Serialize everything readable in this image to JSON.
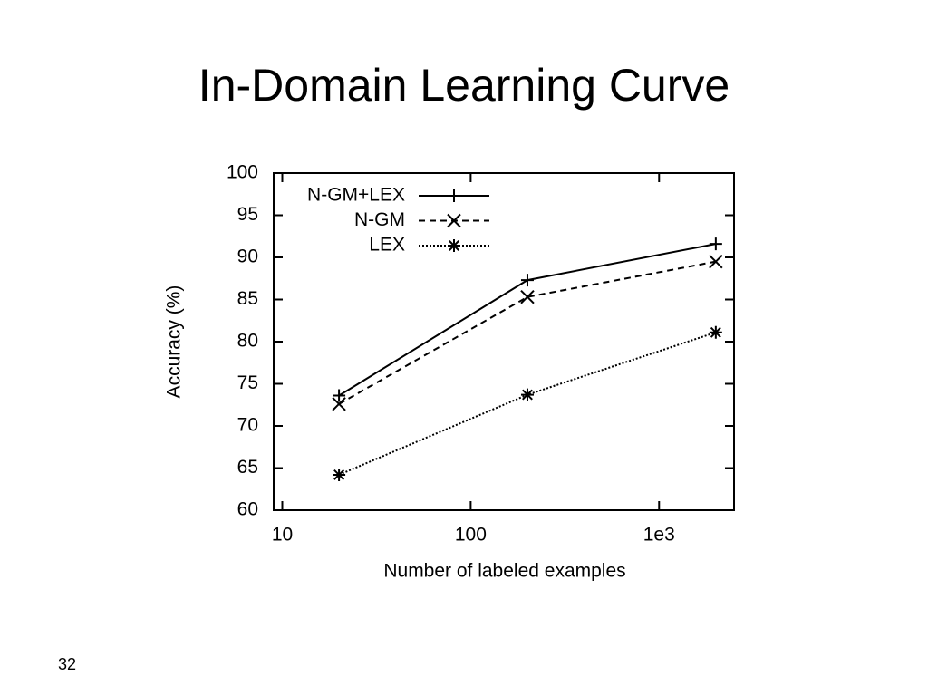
{
  "chart_data": {
    "type": "line",
    "title": "In-Domain Learning Curve",
    "x_label": "Number of labeled examples",
    "y_label": "Accuracy (%)",
    "x": [
      20,
      200,
      2000
    ],
    "series": [
      {
        "name": "N-GM+LEX",
        "color": "#000000",
        "line_style": "solid",
        "marker": "plus",
        "values": [
          73.6,
          87.3,
          91.6
        ]
      },
      {
        "name": "N-GM",
        "color": "#000000",
        "line_style": "dashed",
        "marker": "cross",
        "values": [
          72.6,
          85.3,
          89.5
        ]
      },
      {
        "name": "LEX",
        "color": "#000000",
        "line_style": "dotted",
        "marker": "star",
        "values": [
          64.2,
          73.7,
          81.1
        ]
      }
    ],
    "x_log": true,
    "xlim": [
      9,
      2500
    ],
    "xticks": [
      10,
      100,
      {
        "value": 1000,
        "label": "1e3"
      }
    ],
    "ylim": [
      60,
      100
    ],
    "yticks": [
      60,
      65,
      70,
      75,
      80,
      85,
      90,
      95,
      100
    ],
    "legend": "top-left"
  },
  "page_number": "32"
}
